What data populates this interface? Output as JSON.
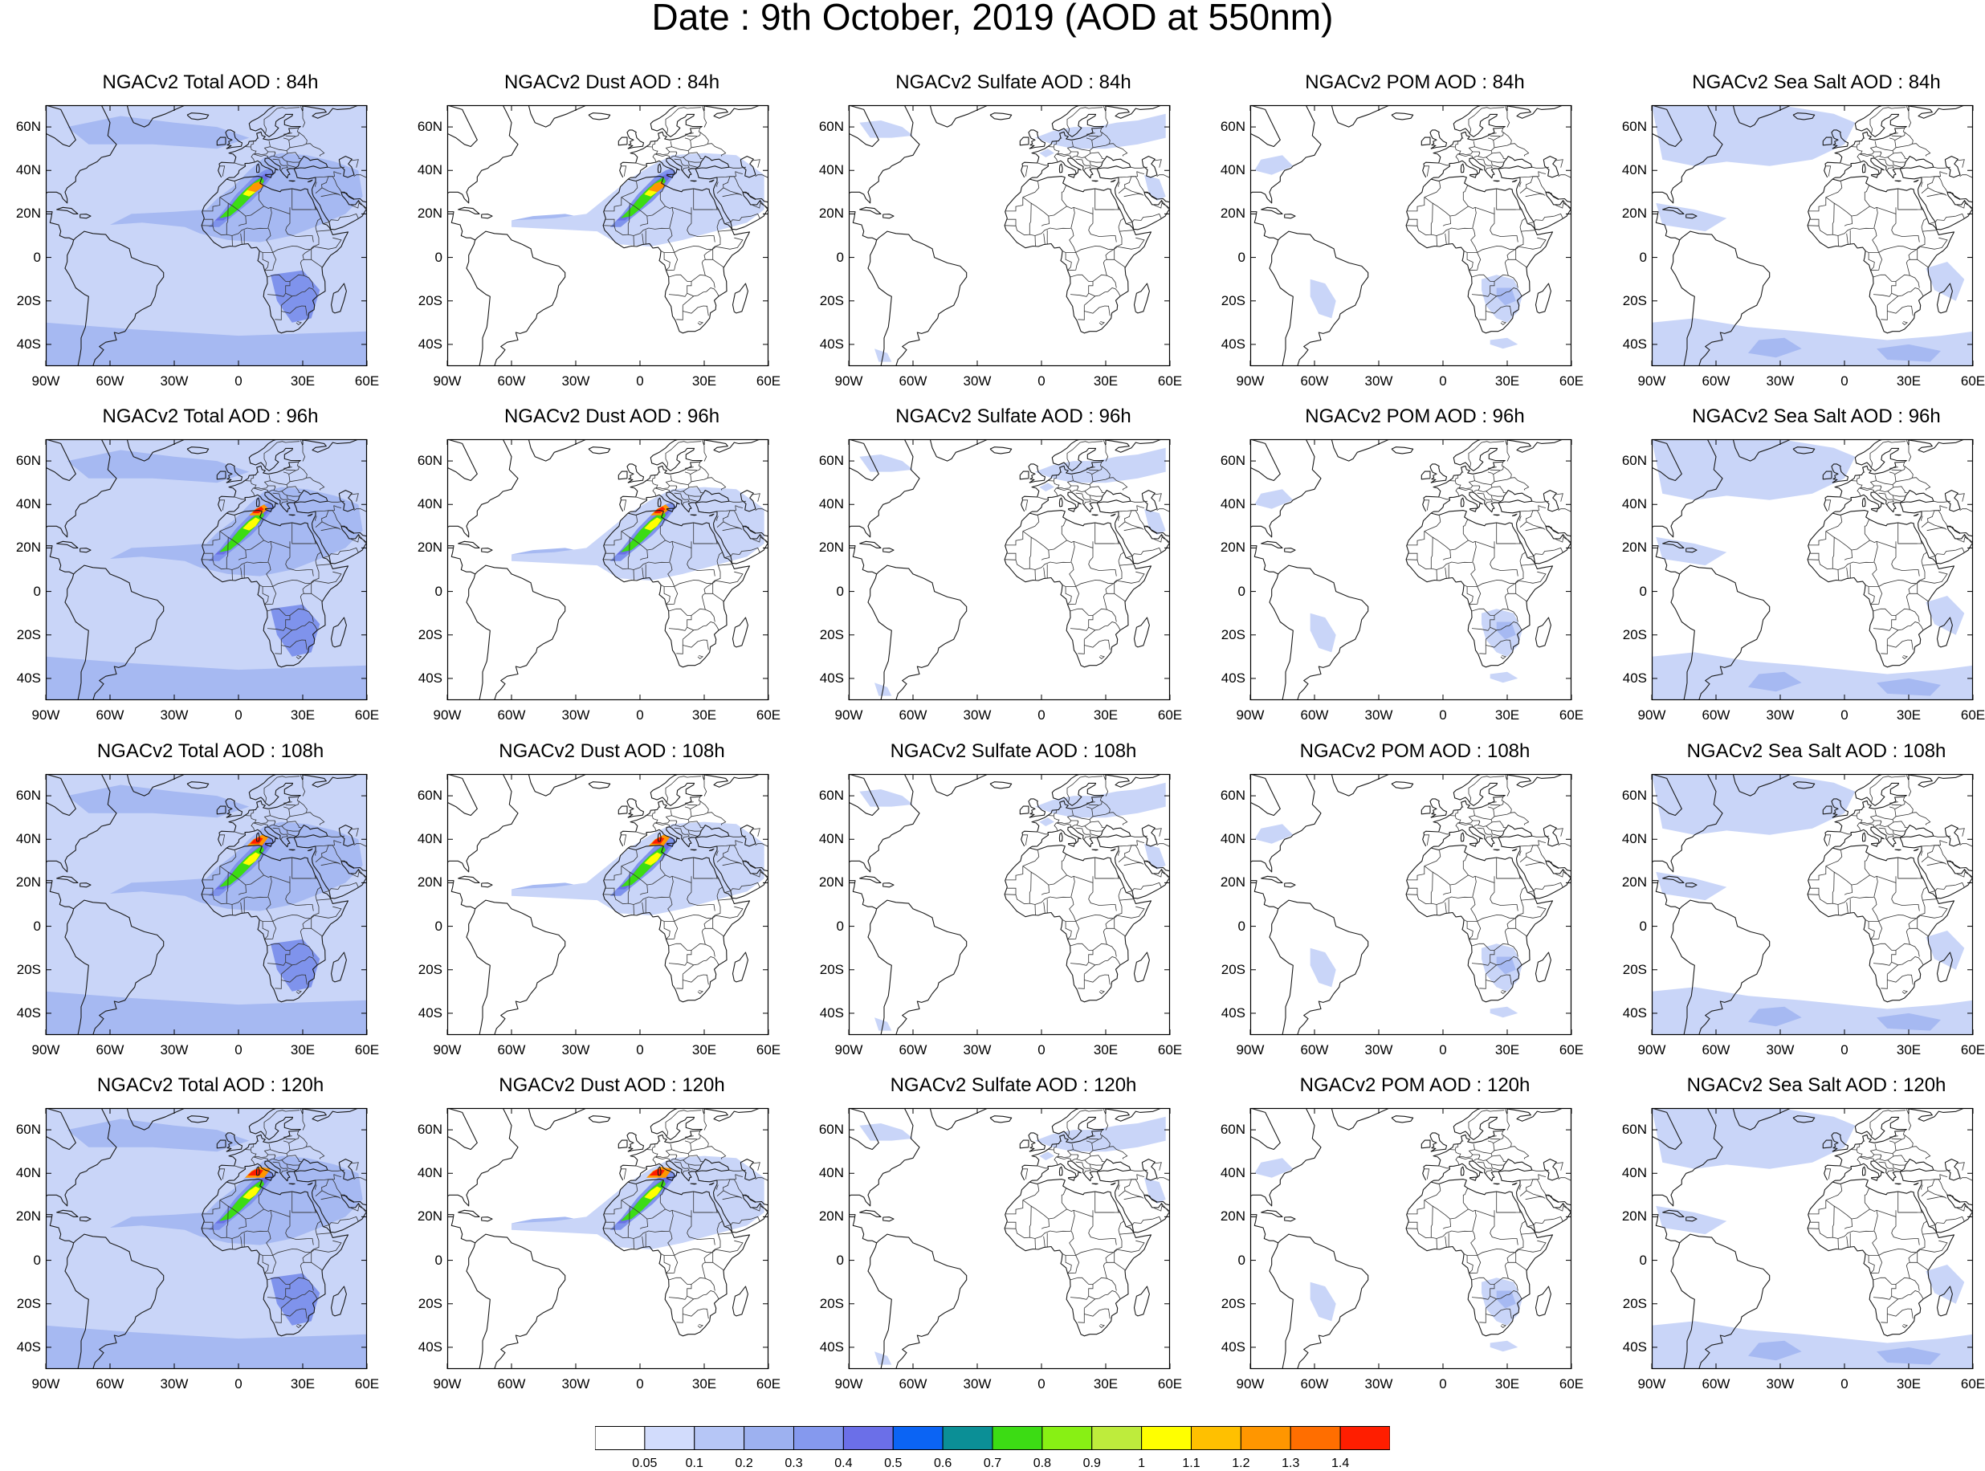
{
  "title": "Date : 9th October, 2019 (AOD at 550nm)",
  "panels": [
    [
      "NGACv2 Total AOD : 84h",
      "NGACv2 Dust AOD : 84h",
      "NGACv2 Sulfate AOD : 84h",
      "NGACv2 POM AOD : 84h",
      "NGACv2 Sea Salt AOD : 84h"
    ],
    [
      "NGACv2 Total AOD : 96h",
      "NGACv2 Dust AOD : 96h",
      "NGACv2 Sulfate AOD : 96h",
      "NGACv2 POM AOD : 96h",
      "NGACv2 Sea Salt AOD : 96h"
    ],
    [
      "NGACv2 Total AOD : 108h",
      "NGACv2 Dust AOD : 108h",
      "NGACv2 Sulfate AOD : 108h",
      "NGACv2 POM AOD : 108h",
      "NGACv2 Sea Salt AOD : 108h"
    ],
    [
      "NGACv2 Total AOD : 120h",
      "NGACv2 Dust AOD : 120h",
      "NGACv2 Sulfate AOD : 120h",
      "NGACv2 POM AOD : 120h",
      "NGACv2 Sea Salt  AOD : 120h"
    ]
  ],
  "map_axes": {
    "lat_ticks": [
      "60N",
      "40N",
      "20N",
      "0",
      "20S",
      "40S"
    ],
    "lon_ticks": [
      "90W",
      "60W",
      "30W",
      "0",
      "30E",
      "60E"
    ],
    "lat_values": [
      60,
      40,
      20,
      0,
      -20,
      -40
    ],
    "lon_values": [
      -90,
      -60,
      -30,
      0,
      30,
      60
    ],
    "lon_range": [
      -90,
      60
    ],
    "lat_range": [
      -50,
      70
    ]
  },
  "colorbar": {
    "labels": [
      "0.05",
      "0.1",
      "0.2",
      "0.3",
      "0.4",
      "0.5",
      "0.6",
      "0.7",
      "0.8",
      "0.9",
      "1",
      "1.1",
      "1.2",
      "1.3",
      "1.4"
    ],
    "colors": [
      "#ffffff",
      "#d2dcfc",
      "#b6c6f6",
      "#9db1f0",
      "#8599ee",
      "#6b6fe8",
      "#0b64f4",
      "#0b8f96",
      "#3cdc14",
      "#88f014",
      "#beec3c",
      "#ffff00",
      "#ffc000",
      "#ff9600",
      "#ff6e00",
      "#ff1e00"
    ]
  },
  "aod_palette": {
    "light": "#c9d5f8",
    "medium": "#a6b9f2",
    "strong": "#7f93ec",
    "dense": "#6a6fe6",
    "green": "#3cdc14",
    "yellow": "#ffff00",
    "orange": "#ff9600",
    "red": "#ff1e00"
  }
}
